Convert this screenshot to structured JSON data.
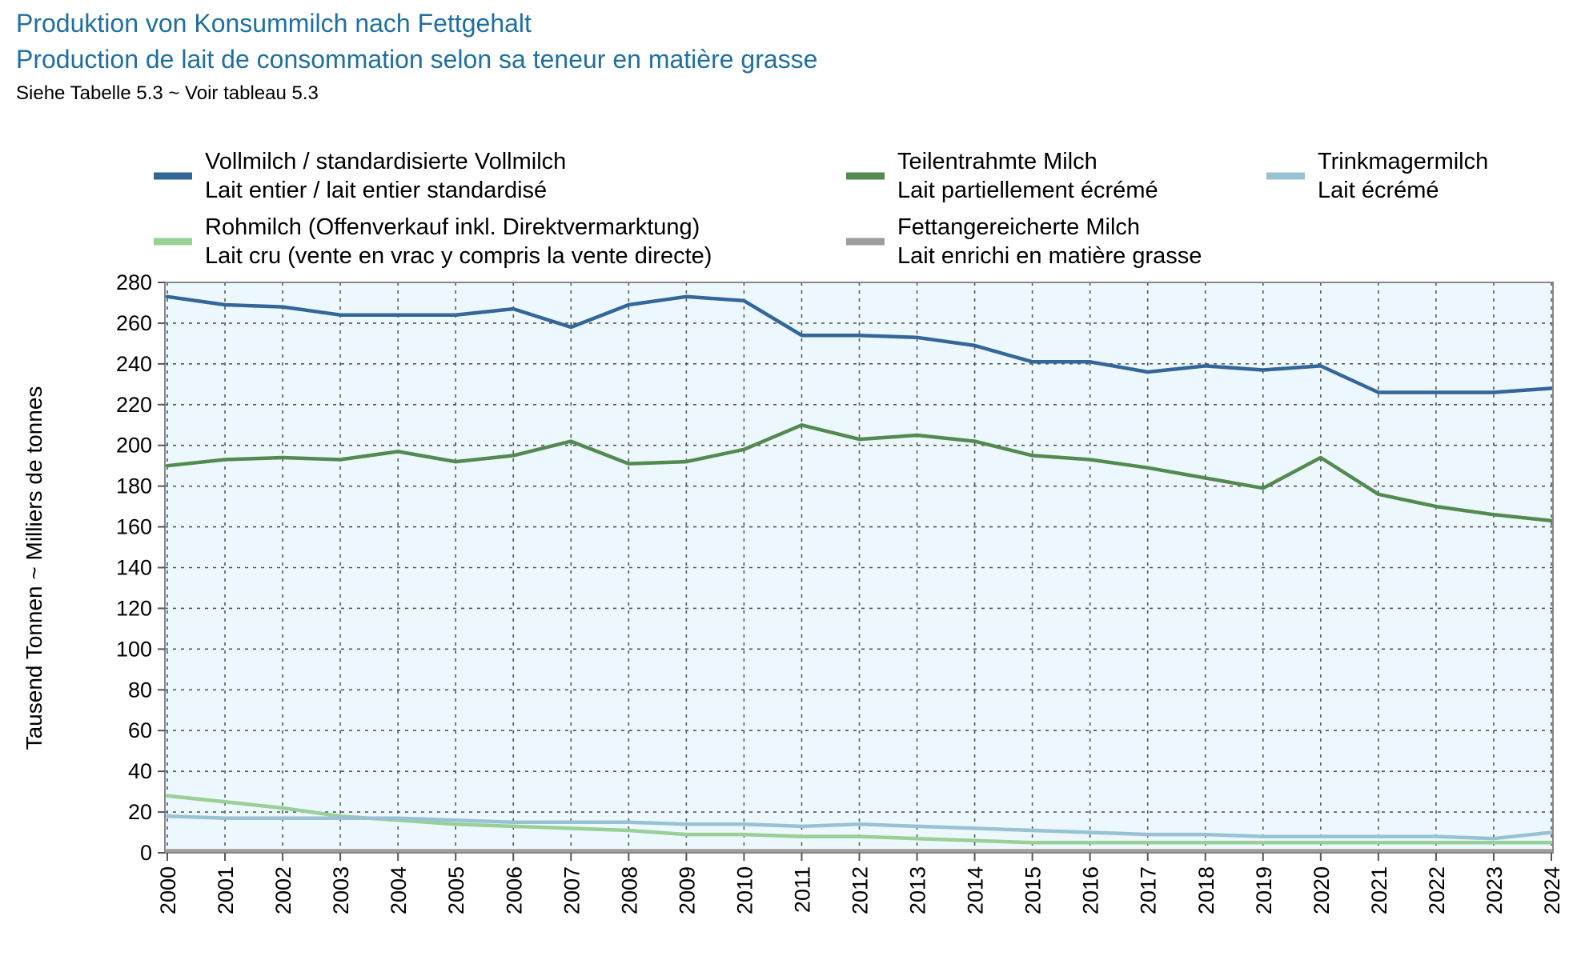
{
  "chart_data": {
    "type": "line",
    "title": "Produktion von Konsummilch nach Fettgehalt",
    "title_fr": "Production de lait de consommation selon sa teneur en matière grasse",
    "subtitle": "Siehe Tabelle 5.3  ~  Voir tableau 5.3",
    "ylabel": "Tausend Tonnen   ~   Milliers de tonnes",
    "xlabel": "",
    "ylim": [
      0,
      280
    ],
    "ytick_step": 20,
    "yticks": [
      "0",
      "20",
      "40",
      "60",
      "80",
      "100",
      "120",
      "140",
      "160",
      "180",
      "200",
      "220",
      "240",
      "260",
      "280"
    ],
    "grid": true,
    "legend_position": "top",
    "x": [
      "2000",
      "2001",
      "2002",
      "2003",
      "2004",
      "2005",
      "2006",
      "2007",
      "2008",
      "2009",
      "2010",
      "2011",
      "2012",
      "2013",
      "2014",
      "2015",
      "2016",
      "2017",
      "2018",
      "2019",
      "2020",
      "2021",
      "2022",
      "2023",
      "2024"
    ],
    "series": [
      {
        "name": "Vollmilch / standardisierte Vollmilch",
        "name_fr": "Lait entier / lait entier standardisé",
        "color": "#336699",
        "values": [
          273,
          269,
          268,
          264,
          264,
          264,
          267,
          258,
          269,
          273,
          271,
          254,
          254,
          253,
          249,
          241,
          241,
          236,
          239,
          237,
          239,
          226,
          226,
          226,
          228
        ]
      },
      {
        "name": "Teilentrahmte Milch",
        "name_fr": "Lait partiellement écrémé",
        "color": "#538a4f",
        "values": [
          190,
          193,
          194,
          193,
          197,
          192,
          195,
          202,
          191,
          192,
          198,
          210,
          203,
          205,
          202,
          195,
          193,
          189,
          184,
          179,
          194,
          176,
          170,
          166,
          163
        ]
      },
      {
        "name": "Trinkmagermilch",
        "name_fr": "Lait écrémé",
        "color": "#98c2d4",
        "values": [
          18,
          17,
          17,
          17,
          17,
          16,
          15,
          15,
          15,
          14,
          14,
          13,
          14,
          13,
          12,
          11,
          10,
          9,
          9,
          8,
          8,
          8,
          8,
          7,
          10
        ]
      },
      {
        "name": "Rohmilch (Offenverkauf inkl. Direktvermarktung)",
        "name_fr": "Lait cru (vente en vrac y compris la vente directe)",
        "color": "#98d095",
        "values": [
          28,
          25,
          22,
          18,
          16,
          14,
          13,
          12,
          11,
          9,
          9,
          8,
          8,
          7,
          6,
          5,
          5,
          5,
          5,
          5,
          5,
          5,
          5,
          5,
          5
        ]
      },
      {
        "name": "Fettangereicherte Milch",
        "name_fr": "Lait enrichi en matière grasse",
        "color": "#9d9d9d",
        "values": [
          1,
          1,
          1,
          1,
          1,
          1,
          1,
          1,
          1,
          1,
          1,
          1,
          1,
          1,
          1,
          1,
          1,
          1,
          1,
          1,
          1,
          1,
          1,
          1,
          1
        ]
      }
    ]
  }
}
